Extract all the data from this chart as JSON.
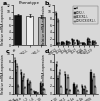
{
  "figure_bg": "#d8d8d8",
  "panels": {
    "a": {
      "title": "Phenotype",
      "ylabel": "Relative mRNA expression",
      "categories": [
        "wt",
        "CCR2-/-",
        "CX3CR1-/-"
      ],
      "bar_colors": [
        "#111111",
        "#eeeeee",
        "#aaaaaa"
      ],
      "values": [
        9.0,
        8.8,
        8.5
      ],
      "errors": [
        0.3,
        0.4,
        0.4
      ],
      "ylim": [
        0,
        12
      ],
      "yticks": [
        0,
        2,
        4,
        6,
        8,
        10,
        12
      ],
      "letter": "a"
    },
    "b": {
      "title": "",
      "ylabel": "Relative mRNA expression",
      "categories": [
        "CCL2",
        "CCL3",
        "CCL4",
        "CCL5",
        "CCL7",
        "CCL8",
        "CXCL9",
        "CXCL10"
      ],
      "series": [
        {
          "label": "wt",
          "color": "#111111",
          "values": [
            9.5,
            1.0,
            1.2,
            1.8,
            1.5,
            0.8,
            2.0,
            1.3
          ],
          "errors": [
            0.5,
            0.08,
            0.1,
            0.15,
            0.12,
            0.07,
            0.18,
            0.12
          ]
        },
        {
          "label": "CCR2-/-",
          "color": "#555555",
          "values": [
            0.8,
            0.7,
            0.9,
            1.0,
            0.8,
            0.6,
            1.2,
            1.0
          ],
          "errors": [
            0.07,
            0.06,
            0.08,
            0.09,
            0.07,
            0.06,
            0.1,
            0.09
          ]
        },
        {
          "label": "CX3CR1-/-",
          "color": "#999999",
          "values": [
            7.5,
            0.9,
            1.0,
            1.5,
            1.2,
            0.7,
            1.8,
            1.1
          ],
          "errors": [
            0.4,
            0.08,
            0.09,
            0.14,
            0.11,
            0.07,
            0.16,
            0.11
          ]
        },
        {
          "label": "CCR2/CX3CR1-/-",
          "color": "#cccccc",
          "values": [
            0.7,
            0.6,
            0.8,
            0.8,
            0.7,
            0.5,
            1.0,
            0.8
          ],
          "errors": [
            0.06,
            0.05,
            0.07,
            0.07,
            0.06,
            0.05,
            0.09,
            0.07
          ]
        }
      ],
      "ylim": [
        0,
        12
      ],
      "yticks": [
        0,
        2,
        4,
        6,
        8,
        10,
        12
      ],
      "letter": "b"
    },
    "c": {
      "title": "",
      "ylabel": "Relative mRNA expression",
      "categories": [
        "IFN-g",
        "TNF-a",
        "IL-2",
        "IL-4",
        "IL-10"
      ],
      "series": [
        {
          "label": "wt",
          "color": "#111111",
          "values": [
            8.5,
            5.5,
            3.5,
            0.6,
            2.8
          ],
          "errors": [
            0.5,
            0.45,
            0.3,
            0.05,
            0.25
          ]
        },
        {
          "label": "CCR2-/-",
          "color": "#555555",
          "values": [
            5.5,
            3.5,
            2.5,
            0.5,
            2.0
          ],
          "errors": [
            0.4,
            0.35,
            0.25,
            0.05,
            0.2
          ]
        },
        {
          "label": "CX3CR1-/-",
          "color": "#999999",
          "values": [
            7.0,
            4.5,
            3.0,
            0.55,
            2.5
          ],
          "errors": [
            0.45,
            0.4,
            0.28,
            0.05,
            0.22
          ]
        },
        {
          "label": "CCR2/CX3CR1-/-",
          "color": "#cccccc",
          "values": [
            2.0,
            1.5,
            1.2,
            0.3,
            1.2
          ],
          "errors": [
            0.18,
            0.14,
            0.12,
            0.03,
            0.12
          ]
        }
      ],
      "ylim": [
        0,
        10
      ],
      "yticks": [
        0,
        2,
        4,
        6,
        8,
        10
      ],
      "letter": "c"
    },
    "d": {
      "title": "",
      "ylabel": "Relative mRNA expression",
      "categories": [
        "IP-10",
        "MCP-1",
        "MIP-1a",
        "MIP-1b",
        "RANTES"
      ],
      "series": [
        {
          "label": "wt",
          "color": "#111111",
          "values": [
            7.5,
            5.0,
            2.5,
            2.0,
            5.5
          ],
          "errors": [
            0.5,
            0.4,
            0.22,
            0.18,
            0.45
          ]
        },
        {
          "label": "CCR2-/-",
          "color": "#555555",
          "values": [
            4.0,
            1.2,
            1.5,
            1.2,
            3.5
          ],
          "errors": [
            0.35,
            0.12,
            0.15,
            0.12,
            0.3
          ]
        },
        {
          "label": "CX3CR1-/-",
          "color": "#999999",
          "values": [
            5.5,
            4.2,
            2.0,
            1.8,
            4.5
          ],
          "errors": [
            0.45,
            0.38,
            0.18,
            0.16,
            0.4
          ]
        },
        {
          "label": "CCR2/CX3CR1-/-",
          "color": "#cccccc",
          "values": [
            1.8,
            0.9,
            0.8,
            0.7,
            1.8
          ],
          "errors": [
            0.16,
            0.08,
            0.07,
            0.07,
            0.16
          ]
        }
      ],
      "ylim": [
        0,
        10
      ],
      "yticks": [
        0,
        2,
        4,
        6,
        8,
        10
      ],
      "letter": "d"
    }
  }
}
